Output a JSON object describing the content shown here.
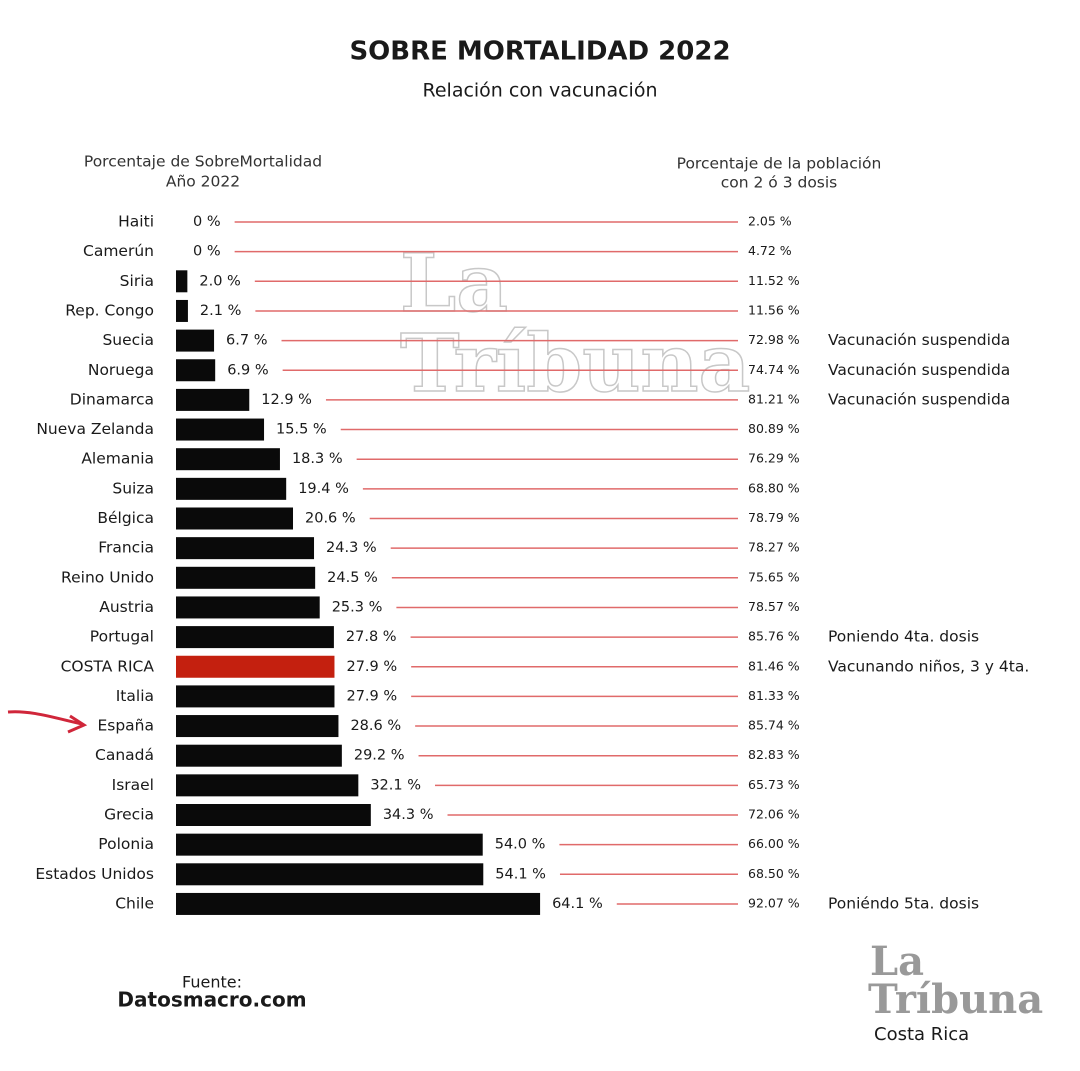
{
  "chart_data": {
    "type": "bar",
    "title": "SOBRE MORTALIDAD 2022",
    "subtitle": "Relación con vacunación",
    "left_header": [
      "Porcentaje de SobreMortalidad",
      "Año 2022"
    ],
    "right_header": [
      "Porcentaje de la población",
      "con 2 ó 3 dosis"
    ],
    "categories": [
      "Haiti",
      "Camerún",
      "Siria",
      "Rep. Congo",
      "Suecia",
      "Noruega",
      "Dinamarca",
      "Nueva Zelanda",
      "Alemania",
      "Suiza",
      "Bélgica",
      "Francia",
      "Reino Unido",
      "Austria",
      "Portugal",
      "COSTA RICA",
      "Italia",
      "España",
      "Canadá",
      "Israel",
      "Grecia",
      "Polonia",
      "Estados Unidos",
      "Chile"
    ],
    "values": [
      0,
      0,
      2.0,
      2.1,
      6.7,
      6.9,
      12.9,
      15.5,
      18.3,
      19.4,
      20.6,
      24.3,
      24.5,
      25.3,
      27.8,
      27.9,
      27.9,
      28.6,
      29.2,
      32.1,
      34.3,
      54.0,
      54.1,
      64.1
    ],
    "value_labels": [
      "0 %",
      "0 %",
      "2.0 %",
      "2.1 %",
      "6.7 %",
      "6.9 %",
      "12.9 %",
      "15.5 %",
      "18.3 %",
      "19.4 %",
      "20.6 %",
      "24.3 %",
      "24.5 %",
      "25.3 %",
      "27.8 %",
      "27.9 %",
      "27.9 %",
      "28.6 %",
      "29.2 %",
      "32.1 %",
      "34.3 %",
      "54.0 %",
      "54.1 %",
      "64.1 %"
    ],
    "colors": [
      "#0a0a0a",
      "#0a0a0a",
      "#0a0a0a",
      "#0a0a0a",
      "#0a0a0a",
      "#0a0a0a",
      "#0a0a0a",
      "#0a0a0a",
      "#0a0a0a",
      "#0a0a0a",
      "#0a0a0a",
      "#0a0a0a",
      "#0a0a0a",
      "#0a0a0a",
      "#0a0a0a",
      "#c4200f",
      "#0a0a0a",
      "#0a0a0a",
      "#0a0a0a",
      "#0a0a0a",
      "#0a0a0a",
      "#0a0a0a",
      "#0a0a0a",
      "#0a0a0a"
    ],
    "vaccination": {
      "values": [
        2.05,
        4.72,
        11.52,
        11.56,
        72.98,
        74.74,
        81.21,
        80.89,
        76.29,
        68.8,
        78.79,
        78.27,
        75.65,
        78.57,
        85.76,
        81.46,
        81.33,
        85.74,
        82.83,
        65.73,
        72.06,
        66.0,
        68.5,
        92.07
      ],
      "value_labels": [
        "2.05 %",
        "4.72 %",
        "11.52 %",
        "11.56 %",
        "72.98 %",
        "74.74 %",
        "81.21 %",
        "80.89 %",
        "76.29 %",
        "68.80 %",
        "78.79 %",
        "78.27 %",
        "75.65 %",
        "78.57 %",
        "85.76 %",
        "81.46 %",
        "81.33 %",
        "85.74 %",
        "82.83 %",
        "65.73 %",
        "72.06 %",
        "66.00 %",
        "68.50 %",
        "92.07 %"
      ]
    },
    "notes": [
      null,
      null,
      null,
      null,
      "Vacunación suspendida",
      "Vacunación suspendida",
      "Vacunación suspendida",
      null,
      null,
      null,
      null,
      null,
      null,
      null,
      "Poniendo 4ta. dosis",
      "Vacunando niños, 3 y 4ta.",
      null,
      null,
      null,
      null,
      null,
      null,
      null,
      "Poniéndo  5ta. dosis"
    ],
    "source": [
      "Fuente:",
      "Datosmacro.com"
    ],
    "logo": [
      "La",
      "Tríbuna",
      "Costa Rica"
    ]
  }
}
